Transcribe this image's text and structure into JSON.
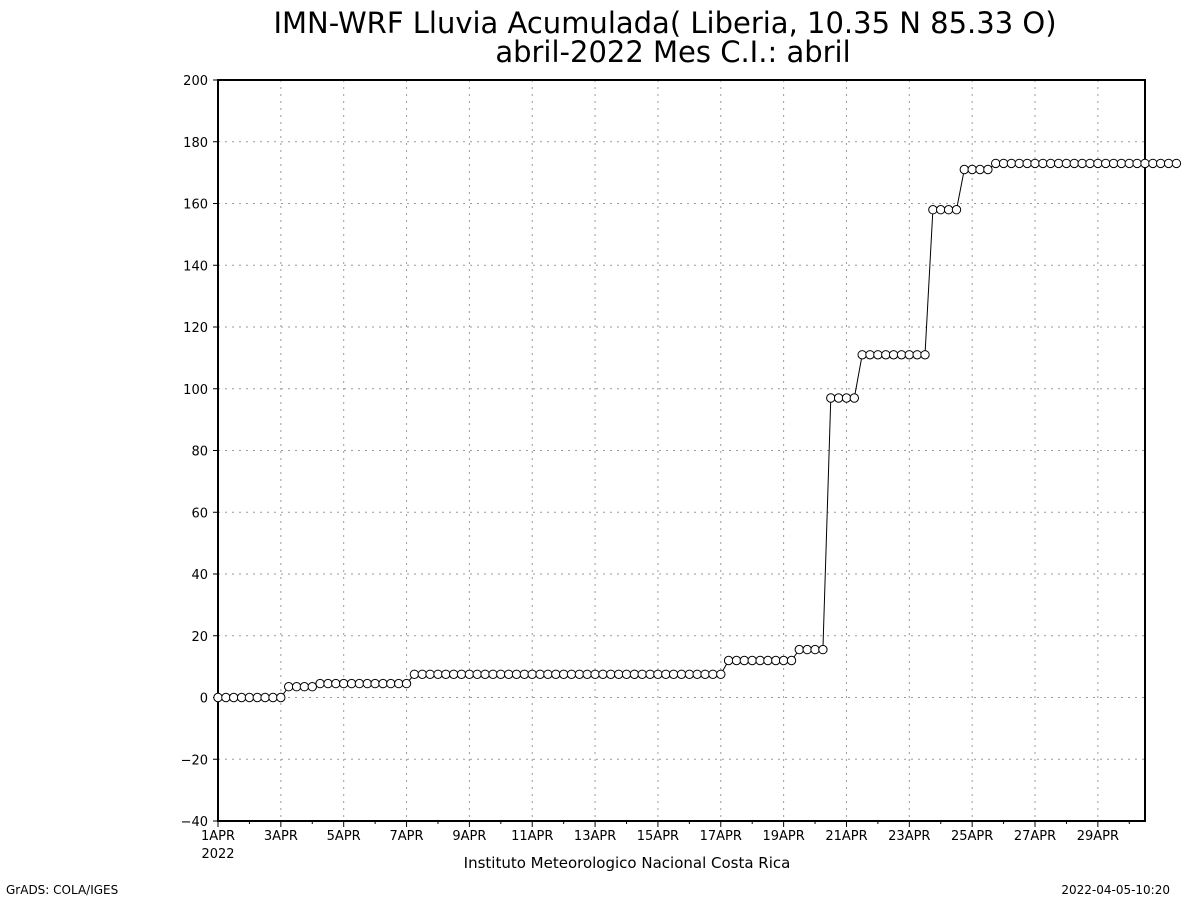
{
  "chart_data": {
    "type": "line",
    "title": "IMN-WRF  Lluvia Acumulada( Liberia, 10.35  N 85.33  O)",
    "subtitle": "abril-2022 Mes C.I.: abril",
    "xlabel": "Instituto Meteorologico Nacional Costa Rica",
    "ylabel": "",
    "ylim": [
      -40,
      200
    ],
    "xlim": [
      "2022-04-01 00:00",
      "2022-04-30 12:00"
    ],
    "y_ticks": [
      -40,
      -20,
      0,
      20,
      40,
      60,
      80,
      100,
      120,
      140,
      160,
      180,
      200
    ],
    "x_ticks": [
      {
        "label": "1APR",
        "day": 1
      },
      {
        "label": "3APR",
        "day": 3
      },
      {
        "label": "5APR",
        "day": 5
      },
      {
        "label": "7APR",
        "day": 7
      },
      {
        "label": "9APR",
        "day": 9
      },
      {
        "label": "11APR",
        "day": 11
      },
      {
        "label": "13APR",
        "day": 13
      },
      {
        "label": "15APR",
        "day": 15
      },
      {
        "label": "17APR",
        "day": 17
      },
      {
        "label": "19APR",
        "day": 19
      },
      {
        "label": "21APR",
        "day": 21
      },
      {
        "label": "23APR",
        "day": 23
      },
      {
        "label": "25APR",
        "day": 25
      },
      {
        "label": "27APR",
        "day": 27
      },
      {
        "label": "29APR",
        "day": 29
      }
    ],
    "x_year_label": "2022",
    "grid": true,
    "marker": "open-circle",
    "time_step_hours": 6,
    "series": [
      {
        "values": [
          0,
          0,
          0,
          0,
          0,
          0,
          0,
          0,
          0,
          3.5,
          3.5,
          3.5,
          3.5,
          4.5,
          4.5,
          4.5,
          4.5,
          4.5,
          4.5,
          4.5,
          4.5,
          4.5,
          4.5,
          4.5,
          4.5,
          7.5,
          7.5,
          7.5,
          7.5,
          7.5,
          7.5,
          7.5,
          7.5,
          7.5,
          7.5,
          7.5,
          7.5,
          7.5,
          7.5,
          7.5,
          7.5,
          7.5,
          7.5,
          7.5,
          7.5,
          7.5,
          7.5,
          7.5,
          7.5,
          7.5,
          7.5,
          7.5,
          7.5,
          7.5,
          7.5,
          7.5,
          7.5,
          7.5,
          7.5,
          7.5,
          7.5,
          7.5,
          7.5,
          7.5,
          7.5,
          12,
          12,
          12,
          12,
          12,
          12,
          12,
          12,
          12,
          15.5,
          15.5,
          15.5,
          15.5,
          97,
          97,
          97,
          97,
          111,
          111,
          111,
          111,
          111,
          111,
          111,
          111,
          111,
          158,
          158,
          158,
          158,
          171,
          171,
          171,
          171,
          173,
          173,
          173,
          173,
          173,
          173,
          173,
          173,
          173,
          173,
          173,
          173,
          173,
          173,
          173,
          173,
          173,
          173,
          173,
          173,
          173,
          173,
          173,
          173
        ]
      }
    ]
  },
  "footer": {
    "left": "GrADS: COLA/IGES",
    "right": "2022-04-05-10:20"
  }
}
